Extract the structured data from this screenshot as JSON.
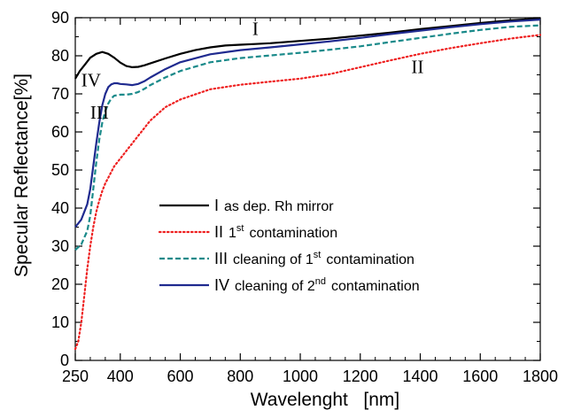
{
  "chart_data": {
    "type": "line",
    "xlabel": "Wavelenght   [nm]",
    "ylabel": "Specular Reflectance[%]",
    "xlim": [
      250,
      1800
    ],
    "ylim": [
      0,
      90
    ],
    "xticks": [
      250,
      400,
      600,
      800,
      1000,
      1200,
      1400,
      1600,
      1800
    ],
    "yticks": [
      0,
      10,
      20,
      30,
      40,
      50,
      60,
      70,
      80,
      90
    ],
    "grid": false,
    "legend_position": "center",
    "series": [
      {
        "id": "I",
        "curve_label": "I",
        "legend_numeral": "I",
        "legend_text": "as dep. Rh mirror",
        "legend_sup": "",
        "legend_suffix": "",
        "color": "#000000",
        "dash": "solid",
        "x": [
          250,
          265,
          280,
          300,
          320,
          340,
          360,
          380,
          400,
          420,
          440,
          460,
          480,
          500,
          550,
          600,
          650,
          700,
          750,
          800,
          850,
          900,
          1000,
          1100,
          1200,
          1300,
          1400,
          1500,
          1600,
          1700,
          1800
        ],
        "y": [
          74,
          76,
          77.5,
          79.5,
          80.5,
          81,
          80.5,
          79.5,
          78.2,
          77.3,
          77,
          77.1,
          77.5,
          78,
          79.3,
          80.5,
          81.5,
          82.2,
          82.7,
          82.9,
          83.1,
          83.3,
          83.9,
          84.5,
          85.3,
          86.1,
          87,
          87.8,
          88.6,
          89.3,
          89.8
        ]
      },
      {
        "id": "II",
        "curve_label": "II",
        "legend_numeral": "II",
        "legend_text": "1",
        "legend_sup": "st",
        "legend_suffix": "contamination",
        "color": "#ee2020",
        "dash": "dotted",
        "x": [
          250,
          260,
          270,
          280,
          290,
          300,
          310,
          320,
          330,
          340,
          350,
          360,
          380,
          400,
          450,
          500,
          550,
          600,
          700,
          800,
          900,
          1000,
          1100,
          1200,
          1300,
          1400,
          1500,
          1600,
          1700,
          1800
        ],
        "y": [
          3,
          5,
          10,
          17,
          24,
          30,
          35,
          39,
          42,
          44.5,
          46.5,
          48,
          51,
          53,
          58,
          63,
          66.5,
          68.5,
          71.2,
          72.4,
          73.2,
          74,
          75.2,
          77,
          78.8,
          80.5,
          82,
          83.3,
          84.5,
          85.5
        ]
      },
      {
        "id": "III",
        "curve_label": "III",
        "legend_numeral": "III",
        "legend_text": "cleaning of 1",
        "legend_sup": "st",
        "legend_suffix": "contamination",
        "color": "#1a8a8a",
        "dash": "dashed",
        "x": [
          250,
          270,
          290,
          300,
          310,
          320,
          330,
          340,
          350,
          360,
          370,
          380,
          400,
          420,
          440,
          460,
          480,
          500,
          550,
          600,
          700,
          800,
          900,
          1000,
          1100,
          1200,
          1300,
          1400,
          1500,
          1600,
          1700,
          1800
        ],
        "y": [
          29,
          30.5,
          34,
          38,
          45,
          52,
          58,
          62.5,
          65.5,
          67.5,
          68.8,
          69.5,
          69.8,
          69.8,
          70,
          70.5,
          71.3,
          72.3,
          74.3,
          76,
          78.3,
          79.4,
          80.1,
          80.8,
          81.6,
          82.5,
          83.6,
          84.7,
          85.8,
          86.8,
          87.6,
          88
        ]
      },
      {
        "id": "IV",
        "curve_label": "IV",
        "legend_numeral": "IV",
        "legend_text": "cleaning of 2",
        "legend_sup": "nd",
        "legend_suffix": "contamination",
        "color": "#1f2a8f",
        "dash": "solid",
        "x": [
          250,
          270,
          290,
          300,
          310,
          320,
          330,
          340,
          350,
          360,
          370,
          380,
          390,
          400,
          420,
          440,
          460,
          480,
          500,
          550,
          600,
          700,
          800,
          900,
          1000,
          1100,
          1200,
          1300,
          1400,
          1500,
          1600,
          1700,
          1800
        ],
        "y": [
          35,
          37,
          41,
          45,
          51,
          57,
          62.5,
          67,
          70,
          71.8,
          72.5,
          72.8,
          72.8,
          72.6,
          72.5,
          72.3,
          72.6,
          73.3,
          74.3,
          76.5,
          78.3,
          80.4,
          81.5,
          82.2,
          83,
          83.8,
          84.7,
          85.7,
          86.6,
          87.5,
          88.3,
          89,
          89.5
        ]
      }
    ],
    "curve_label_positions": [
      {
        "id": "I",
        "x": 840,
        "y": 85.5
      },
      {
        "id": "II",
        "x": 1370,
        "y": 75.5
      },
      {
        "id": "III",
        "x": 300,
        "y": 63.5
      },
      {
        "id": "IV",
        "x": 270,
        "y": 72
      }
    ]
  }
}
